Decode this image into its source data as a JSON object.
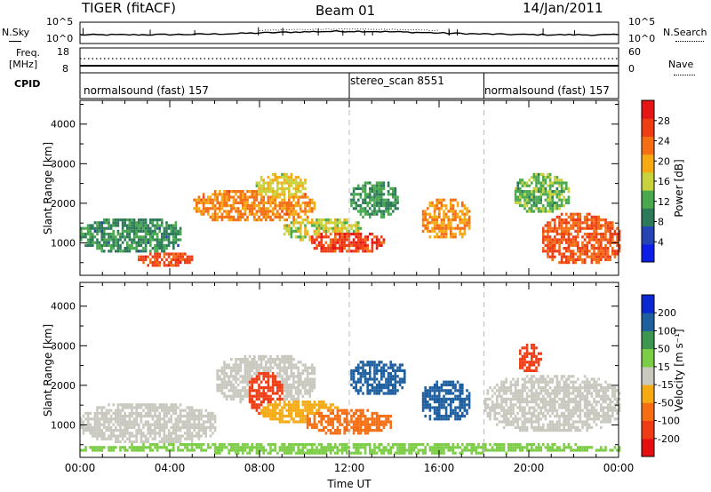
{
  "header": {
    "radar": "TIGER (fitACF)",
    "beam": "Beam 01",
    "date": "14/Jan/2011"
  },
  "top_panels": {
    "nsky_label": "N.Sky",
    "nsky_ticks": [
      "10^5",
      "10^0"
    ],
    "nsearch_label": "N.Search",
    "nsearch_ticks": [
      "10^5",
      "10^0"
    ],
    "freq_label": "Freq.",
    "freq_unit": "[MHz]",
    "freq_ticks": [
      "18",
      "8"
    ],
    "nave_label": "Nave",
    "nave_ticks": [
      "60",
      "0"
    ],
    "cpid_label": "CPID",
    "cpid_segments": [
      {
        "label": "normalsound (fast) 157",
        "start": 0,
        "end": 12
      },
      {
        "label": "stereo_scan 8551",
        "start": 12,
        "end": 18
      },
      {
        "label": "normalsound (fast) 157",
        "start": 18,
        "end": 24
      }
    ]
  },
  "chart_data": [
    {
      "type": "heatmap",
      "quantity": "Power",
      "ylabel": "Slant Range [km]",
      "xlabel": "",
      "x_range_hours": [
        0,
        24
      ],
      "ylim": [
        180,
        4600
      ],
      "yticks": [
        1000,
        2000,
        3000,
        4000
      ],
      "colorbar": {
        "label": "Power [dB]",
        "range": [
          0,
          32
        ],
        "ticks": [
          4,
          8,
          12,
          16,
          20,
          24,
          28
        ],
        "colors": [
          "#0a1ee6",
          "#2545b4",
          "#2d7a5a",
          "#4aa84e",
          "#c8d23c",
          "#f5aa14",
          "#f56e14",
          "#ee3c14",
          "#e61414"
        ]
      },
      "regions": [
        {
          "t0": 0.0,
          "t1": 4.5,
          "r0": 700,
          "r1": 1600,
          "v": 10
        },
        {
          "t0": 2.5,
          "t1": 5.0,
          "r0": 380,
          "r1": 720,
          "v": 26
        },
        {
          "t0": 5.0,
          "t1": 10.5,
          "r0": 1500,
          "r1": 2300,
          "v": 22
        },
        {
          "t0": 7.8,
          "t1": 10.0,
          "r0": 2100,
          "r1": 2700,
          "v": 17
        },
        {
          "t0": 9.0,
          "t1": 12.5,
          "r0": 1000,
          "r1": 1600,
          "v": 16
        },
        {
          "t0": 10.2,
          "t1": 13.5,
          "r0": 700,
          "r1": 1250,
          "v": 27
        },
        {
          "t0": 12.0,
          "t1": 14.2,
          "r0": 1600,
          "r1": 2500,
          "v": 11
        },
        {
          "t0": 15.2,
          "t1": 17.4,
          "r0": 1050,
          "r1": 2050,
          "v": 21
        },
        {
          "t0": 19.3,
          "t1": 21.8,
          "r0": 1700,
          "r1": 2700,
          "v": 13
        },
        {
          "t0": 20.5,
          "t1": 24.0,
          "r0": 400,
          "r1": 1700,
          "v": 25
        }
      ]
    },
    {
      "type": "heatmap",
      "quantity": "Velocity",
      "ylabel": "Slant Range [km]",
      "xlabel": "Time UT",
      "x_range_hours": [
        0,
        24
      ],
      "xtick_labels": [
        "00:00",
        "04:00",
        "08:00",
        "12:00",
        "16:00",
        "20:00",
        "00:00"
      ],
      "ylim": [
        180,
        4600
      ],
      "yticks": [
        1000,
        2000,
        3000,
        4000
      ],
      "colorbar": {
        "label": "Velocity [m s⁻¹]",
        "tick_labels": [
          "200",
          "100",
          "50",
          "15",
          "-15",
          "-50",
          "-100",
          "-200"
        ],
        "colors": [
          "#0a28d2",
          "#1e5fa0",
          "#3c9650",
          "#7ccd46",
          "#c8c8be",
          "#f5aa14",
          "#f56e14",
          "#f03c14",
          "#e60f0f"
        ]
      },
      "regions": [
        {
          "t0": 0.0,
          "t1": 6.0,
          "r0": 500,
          "r1": 1500,
          "v": 0
        },
        {
          "t0": 6.0,
          "t1": 10.5,
          "r0": 1500,
          "r1": 2700,
          "v": 5
        },
        {
          "t0": 7.5,
          "t1": 9.0,
          "r0": 1200,
          "r1": 2300,
          "v": -150
        },
        {
          "t0": 8.0,
          "t1": 11.5,
          "r0": 1000,
          "r1": 1600,
          "v": -30
        },
        {
          "t0": 10.0,
          "t1": 13.8,
          "r0": 700,
          "r1": 1350,
          "v": -60
        },
        {
          "t0": 12.0,
          "t1": 14.5,
          "r0": 1700,
          "r1": 2600,
          "v": 150
        },
        {
          "t0": 15.2,
          "t1": 17.4,
          "r0": 1050,
          "r1": 2050,
          "v": 180
        },
        {
          "t0": 19.5,
          "t1": 20.5,
          "r0": 2300,
          "r1": 3000,
          "v": -180
        },
        {
          "t0": 18.0,
          "t1": 24.0,
          "r0": 800,
          "r1": 2200,
          "v": 0
        },
        {
          "t0": 0.0,
          "t1": 24.0,
          "r0": 250,
          "r1": 500,
          "v": 40
        }
      ]
    }
  ]
}
